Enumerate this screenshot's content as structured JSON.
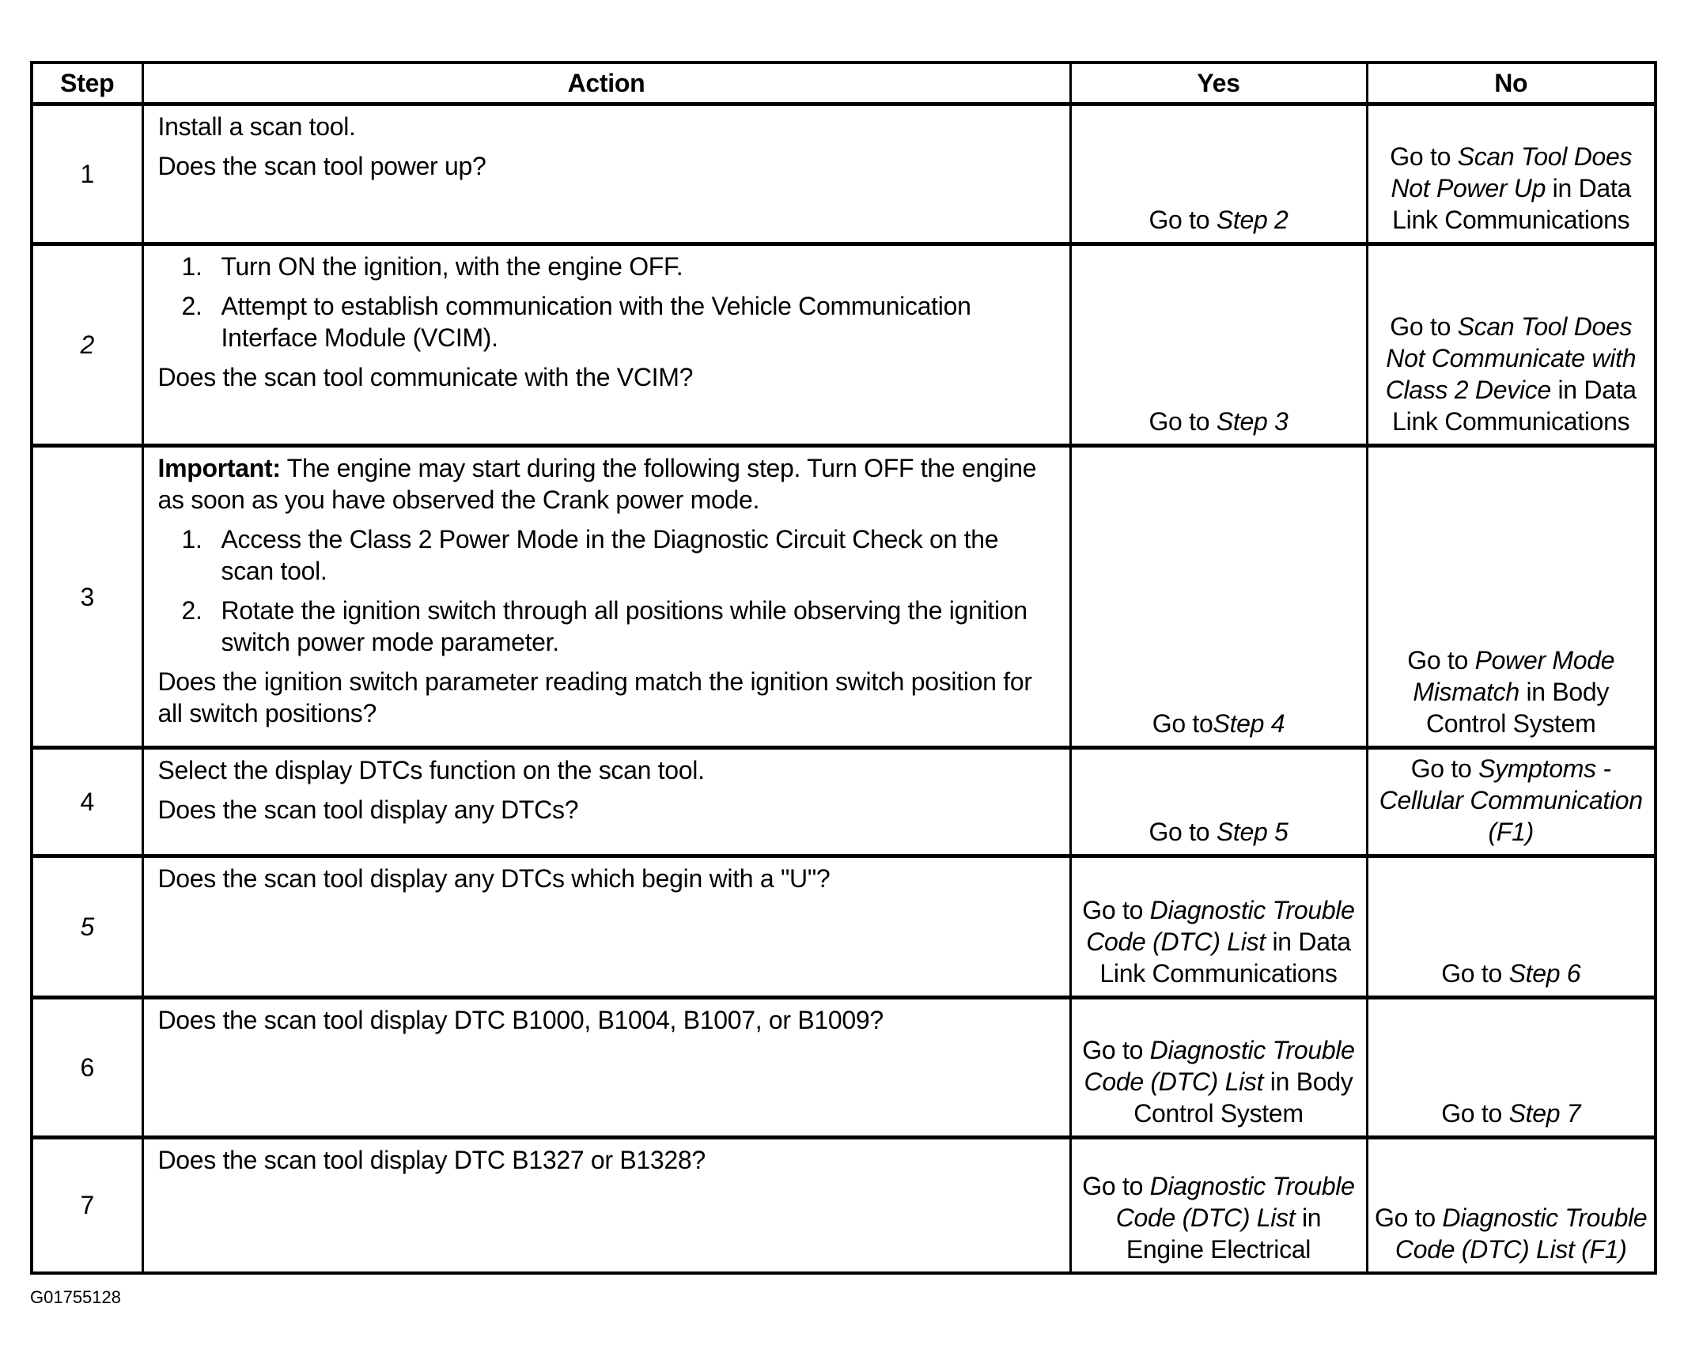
{
  "headers": {
    "step": "Step",
    "action": "Action",
    "yes": "Yes",
    "no": "No"
  },
  "rows": [
    {
      "step": "1",
      "step_italic": false,
      "action": [
        {
          "type": "p",
          "segs": [
            {
              "t": "Install a scan tool."
            }
          ]
        },
        {
          "type": "p",
          "segs": [
            {
              "t": "Does the scan tool power up?"
            }
          ]
        }
      ],
      "yes": [
        {
          "t": "Go to "
        },
        {
          "t": "Step 2",
          "i": true
        }
      ],
      "no": [
        {
          "t": "Go to "
        },
        {
          "t": "Scan Tool Does Not Power Up",
          "i": true
        },
        {
          "t": " in Data Link Communications"
        }
      ]
    },
    {
      "step": "2",
      "step_italic": true,
      "action": [
        {
          "type": "li",
          "n": "1.",
          "segs": [
            {
              "t": "Turn ON the ignition, with the engine OFF."
            }
          ]
        },
        {
          "type": "li",
          "n": "2.",
          "segs": [
            {
              "t": "Attempt to establish communication with the Vehicle Communication Interface Module (VCIM)."
            }
          ]
        },
        {
          "type": "p",
          "segs": [
            {
              "t": "Does the scan tool communicate with the VCIM?"
            }
          ]
        }
      ],
      "yes": [
        {
          "t": "Go to "
        },
        {
          "t": "Step 3",
          "i": true
        }
      ],
      "no": [
        {
          "t": "Go to "
        },
        {
          "t": "Scan Tool Does Not Communicate with Class 2 Device",
          "i": true
        },
        {
          "t": " in Data Link Communications"
        }
      ]
    },
    {
      "step": "3",
      "step_italic": false,
      "action": [
        {
          "type": "p",
          "segs": [
            {
              "t": "Important:",
              "b": true
            },
            {
              "t": " The engine may start during the following step. Turn OFF the engine as soon as you have observed the Crank power mode."
            }
          ]
        },
        {
          "type": "li",
          "n": "1.",
          "segs": [
            {
              "t": "Access the Class 2 Power Mode in the Diagnostic Circuit Check on the scan tool."
            }
          ]
        },
        {
          "type": "li",
          "n": "2.",
          "segs": [
            {
              "t": "Rotate the ignition switch through all positions while observing the ignition switch power mode parameter."
            }
          ]
        },
        {
          "type": "p",
          "segs": [
            {
              "t": "Does the ignition switch parameter reading match the ignition switch position for all switch positions?"
            }
          ]
        }
      ],
      "yes": [
        {
          "t": "Go to"
        },
        {
          "t": "Step 4",
          "i": true
        }
      ],
      "no": [
        {
          "t": "Go to "
        },
        {
          "t": "Power Mode Mismatch",
          "i": true
        },
        {
          "t": " in Body Control System"
        }
      ]
    },
    {
      "step": "4",
      "step_italic": false,
      "action": [
        {
          "type": "p",
          "segs": [
            {
              "t": "Select the display DTCs function on the scan tool."
            }
          ]
        },
        {
          "type": "p",
          "segs": [
            {
              "t": "Does the scan tool display any DTCs?"
            }
          ]
        }
      ],
      "yes": [
        {
          "t": "Go to "
        },
        {
          "t": "Step 5",
          "i": true
        }
      ],
      "no": [
        {
          "t": "Go to "
        },
        {
          "t": "Symptoms - Cellular Communication (F1)",
          "i": true
        }
      ]
    },
    {
      "step": "5",
      "step_italic": true,
      "action": [
        {
          "type": "p",
          "segs": [
            {
              "t": "Does the scan tool display any DTCs which begin with a \"U\"?"
            }
          ]
        }
      ],
      "yes": [
        {
          "t": "Go to "
        },
        {
          "t": "Diagnostic Trouble Code (DTC) List",
          "i": true
        },
        {
          "t": " in Data Link Communications"
        }
      ],
      "no": [
        {
          "t": "Go to "
        },
        {
          "t": "Step 6",
          "i": true
        }
      ]
    },
    {
      "step": "6",
      "step_italic": false,
      "action": [
        {
          "type": "p",
          "segs": [
            {
              "t": "Does the scan tool display DTC B1000, B1004, B1007, or B1009?"
            }
          ]
        }
      ],
      "yes": [
        {
          "t": "Go to "
        },
        {
          "t": "Diagnostic Trouble Code (DTC) List",
          "i": true
        },
        {
          "t": " in Body Control System"
        }
      ],
      "no": [
        {
          "t": "Go to "
        },
        {
          "t": "Step 7",
          "i": true
        }
      ]
    },
    {
      "step": "7",
      "step_italic": false,
      "action": [
        {
          "type": "p",
          "segs": [
            {
              "t": "Does the scan tool display DTC B1327 or B1328?"
            }
          ]
        }
      ],
      "yes": [
        {
          "t": "Go to "
        },
        {
          "t": "Diagnostic Trouble Code (DTC) List",
          "i": true
        },
        {
          "t": " in Engine Electrical"
        }
      ],
      "no": [
        {
          "t": "Go to "
        },
        {
          "t": "Diagnostic Trouble Code (DTC) List (F1)",
          "i": true
        }
      ]
    }
  ],
  "caption": "G01755128"
}
